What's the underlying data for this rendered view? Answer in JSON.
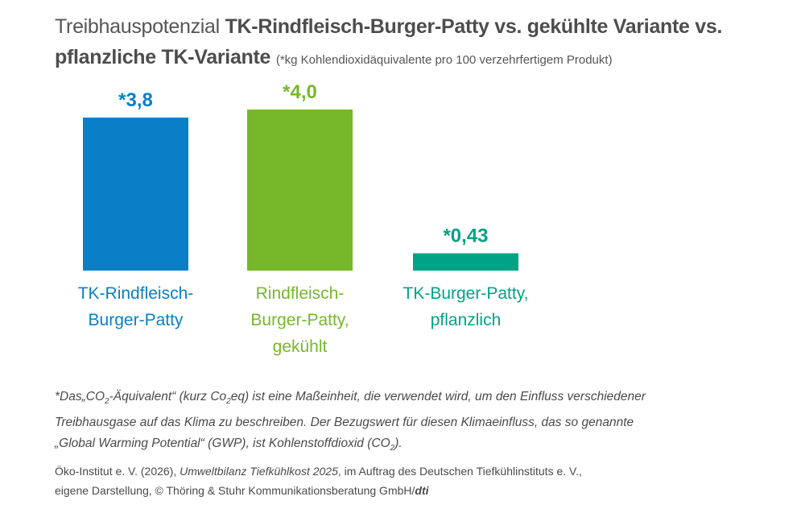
{
  "title": {
    "light": "Treibhauspotenzial ",
    "bold": "TK-Rindfleisch-Burger-Patty vs. gekühlte Variante vs. pflanzliche TK-Variante",
    "note": "(*kg Kohlendioxidäquivalente pro 100 verzehrfertigem Produkt)"
  },
  "chart_data": {
    "type": "bar",
    "categories": [
      [
        "TK-Rindfleisch-",
        "Burger-Patty"
      ],
      [
        "Rindfleisch-",
        "Burger-Patty,",
        "gekühlt"
      ],
      [
        "TK-Burger-Patty,",
        "pflanzlich"
      ]
    ],
    "values": [
      3.8,
      4.0,
      0.43
    ],
    "value_labels": [
      "*3,8",
      "*4,0",
      "*0,43"
    ],
    "colors": [
      "#0a7fc8",
      "#76b82a",
      "#00a386"
    ],
    "ylim": [
      0,
      4.0
    ],
    "grid": false,
    "legend": "none"
  },
  "footnote": {
    "line1_a": "*Das„CO",
    "sub1": "2",
    "line1_b": "-Äquivalent“ (kurz Co",
    "sub2": "2",
    "line1_c": "eq) ist eine Maßeinheit, die verwendet wird, um den Einfluss verschiedener",
    "line2": "Treibhausgase auf das Klima zu beschreiben. Der Bezugswert für diesen Klimaeinfluss, das so genannte",
    "line3_a": "„Global Warming Potential“ (GWP), ist Kohlenstoffdioxid (CO",
    "sub3": "2",
    "line3_b": ")."
  },
  "source": {
    "line1_a": "Öko-Institut e. V. (2026), ",
    "line1_italic": "Umweltbilanz Tiefkühlkost 2025",
    "line1_b": ", im Auftrag des Deutschen Tiefkühlinstituts e. V.,",
    "line2_a": "eigene Darstellung, © Thöring & Stuhr Kommunikationsberatung GmbH/",
    "line2_b": "dti"
  }
}
